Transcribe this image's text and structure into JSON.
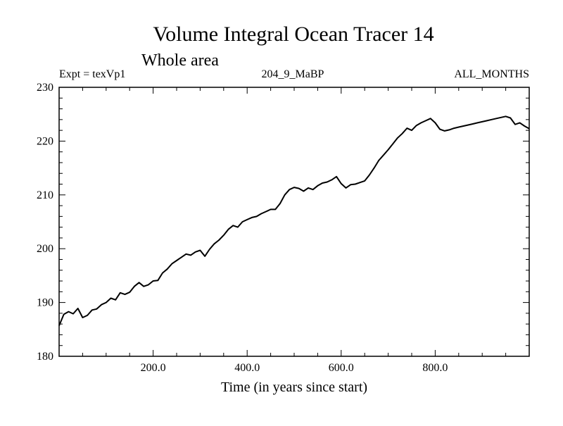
{
  "chart_data": {
    "type": "line",
    "title": "Volume Integral Ocean Tracer 14",
    "subtitle": "Whole area",
    "left_label": "Expt = texVp1",
    "center_label": "204_9_MaBP",
    "right_label": "ALL_MONTHS",
    "xlabel": "Time (in years since start)",
    "ylabel": "",
    "xlim": [
      0,
      1000
    ],
    "ylim": [
      180,
      230
    ],
    "xticks": [
      200,
      400,
      600,
      800
    ],
    "xtick_labels": [
      "200.0",
      "400.0",
      "600.0",
      "800.0"
    ],
    "yticks": [
      180,
      190,
      200,
      210,
      220,
      230
    ],
    "ytick_labels": [
      "180",
      "190",
      "200",
      "210",
      "220",
      "230"
    ],
    "grid": false,
    "series": [
      {
        "name": "Tracer 14",
        "x": [
          0,
          10,
          20,
          30,
          40,
          50,
          60,
          70,
          80,
          90,
          100,
          110,
          120,
          130,
          140,
          150,
          160,
          170,
          180,
          190,
          200,
          210,
          220,
          230,
          240,
          250,
          260,
          270,
          280,
          290,
          300,
          310,
          320,
          330,
          340,
          350,
          360,
          370,
          380,
          390,
          400,
          410,
          420,
          430,
          440,
          450,
          460,
          470,
          480,
          490,
          500,
          510,
          520,
          530,
          540,
          550,
          560,
          570,
          580,
          590,
          600,
          610,
          620,
          630,
          640,
          650,
          660,
          670,
          680,
          690,
          700,
          710,
          720,
          730,
          740,
          750,
          760,
          770,
          780,
          790,
          800,
          810,
          820,
          830,
          840,
          850,
          860,
          870,
          880,
          890,
          900,
          910,
          920,
          930,
          940,
          950,
          960,
          970,
          980,
          990,
          1000
        ],
        "y": [
          185.7,
          187.8,
          188.3,
          187.9,
          188.9,
          187.2,
          187.6,
          188.6,
          188.8,
          189.6,
          190.0,
          190.8,
          190.5,
          191.8,
          191.5,
          191.9,
          193.0,
          193.7,
          193.0,
          193.3,
          194.0,
          194.1,
          195.5,
          196.2,
          197.2,
          197.8,
          198.4,
          199.0,
          198.8,
          199.4,
          199.7,
          198.6,
          199.9,
          200.9,
          201.6,
          202.5,
          203.6,
          204.3,
          204.0,
          205.0,
          205.4,
          205.8,
          206.0,
          206.5,
          206.9,
          207.3,
          207.3,
          208.4,
          210.0,
          211.0,
          211.4,
          211.2,
          210.7,
          211.3,
          211.0,
          211.7,
          212.2,
          212.4,
          212.8,
          213.4,
          212.1,
          211.3,
          211.9,
          212.0,
          212.3,
          212.6,
          213.7,
          215.0,
          216.4,
          217.4,
          218.4,
          219.5,
          220.6,
          221.4,
          222.4,
          222.0,
          222.9,
          223.4,
          223.8,
          224.2,
          223.4,
          222.2,
          221.9,
          222.1,
          222.4,
          222.6,
          222.8,
          223.0,
          223.2,
          223.4,
          223.6,
          223.8,
          224.0,
          224.2,
          224.4,
          224.6,
          224.3,
          223.1,
          223.4,
          222.8,
          222.3
        ]
      }
    ]
  }
}
